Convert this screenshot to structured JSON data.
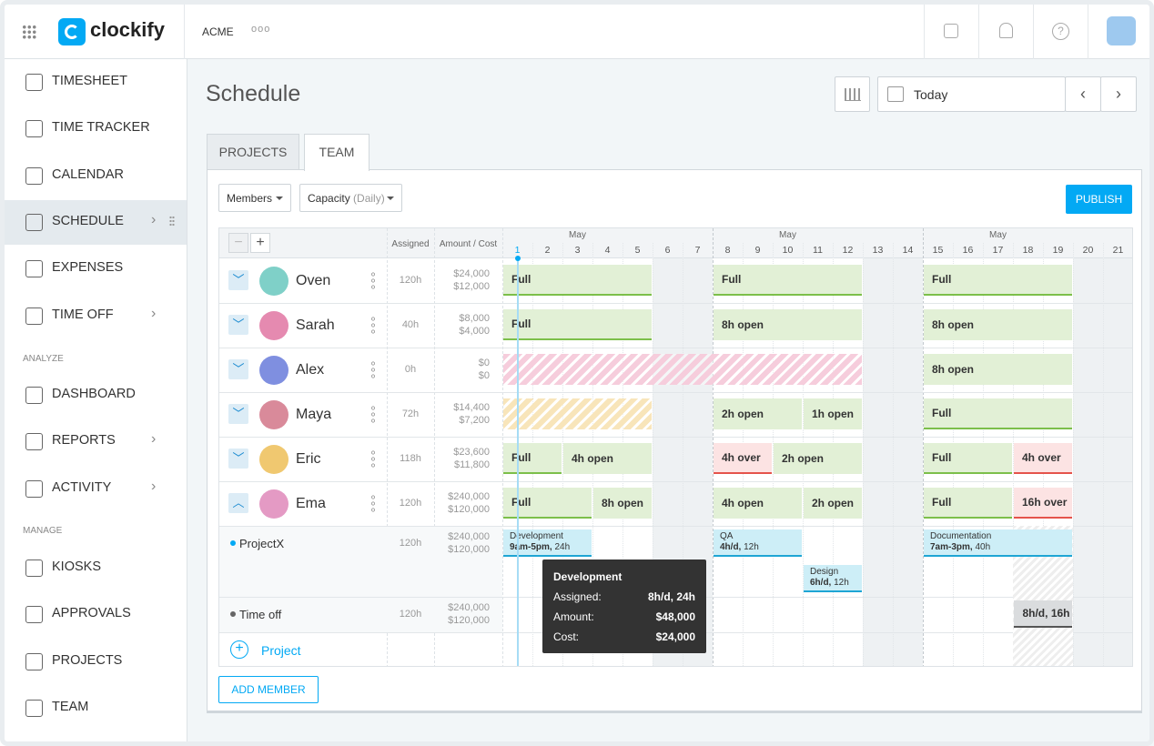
{
  "header": {
    "logo": "clockify",
    "workspace": "ACME"
  },
  "sidebar": {
    "groups": [
      {
        "items": [
          {
            "label": "TIMESHEET"
          },
          {
            "label": "TIME TRACKER"
          },
          {
            "label": "CALENDAR"
          },
          {
            "label": "SCHEDULE",
            "active": true,
            "submenu": true
          },
          {
            "label": "EXPENSES"
          },
          {
            "label": "TIME OFF",
            "submenu": true
          }
        ]
      },
      {
        "heading": "ANALYZE",
        "items": [
          {
            "label": "DASHBOARD"
          },
          {
            "label": "REPORTS",
            "submenu": true
          },
          {
            "label": "ACTIVITY",
            "submenu": true
          }
        ]
      },
      {
        "heading": "MANAGE",
        "items": [
          {
            "label": "KIOSKS"
          },
          {
            "label": "APPROVALS"
          },
          {
            "label": "PROJECTS"
          },
          {
            "label": "TEAM"
          }
        ]
      }
    ]
  },
  "page": {
    "title": "Schedule",
    "date_button": "Today",
    "tabs": [
      {
        "label": "PROJECTS"
      },
      {
        "label": "TEAM",
        "active": true
      }
    ],
    "filters": [
      {
        "label": "Members"
      },
      {
        "label": "Capacity",
        "note": "(Daily)"
      }
    ],
    "publish": "PUBLISH",
    "add_member": "ADD MEMBER"
  },
  "schedule": {
    "columns": {
      "assigned": "Assigned",
      "amount_cost": "Amount / Cost"
    },
    "months": [
      "May",
      "May",
      "May"
    ],
    "days": [
      1,
      2,
      3,
      4,
      5,
      6,
      7,
      8,
      9,
      10,
      11,
      12,
      13,
      14,
      15,
      16,
      17,
      18,
      19,
      20,
      21
    ],
    "today": 1,
    "weekends": [
      6,
      7,
      13,
      14,
      20,
      21
    ],
    "members": [
      {
        "name": "Oven",
        "avatar": "#7fd0c8",
        "assigned": "120h",
        "amount": "$24,000",
        "cost": "$12,000",
        "blocks": [
          {
            "label": "Full",
            "start": 1,
            "end": 5,
            "color": "#e2f0d6",
            "underline": "#7cbf4a"
          },
          {
            "label": "Full",
            "start": 8,
            "end": 12,
            "color": "#e2f0d6",
            "underline": "#7cbf4a"
          },
          {
            "label": "Full",
            "start": 15,
            "end": 19,
            "color": "#e2f0d6",
            "underline": "#7cbf4a"
          }
        ]
      },
      {
        "name": "Sarah",
        "avatar": "#e58ab0",
        "assigned": "40h",
        "amount": "$8,000",
        "cost": "$4,000",
        "blocks": [
          {
            "label": "Full",
            "start": 1,
            "end": 5,
            "color": "#e2f0d6",
            "underline": "#7cbf4a"
          },
          {
            "label": "8h open",
            "start": 8,
            "end": 12,
            "color": "#e2f0d6"
          },
          {
            "label": "8h open",
            "start": 15,
            "end": 19,
            "color": "#e2f0d6"
          }
        ]
      },
      {
        "name": "Alex",
        "avatar": "#7f8fe0",
        "assigned": "0h",
        "amount": "$0",
        "cost": "$0",
        "blocks": [
          {
            "start": 1,
            "end": 12,
            "color": "#f6cddc",
            "hatch": true
          },
          {
            "label": "8h open",
            "start": 15,
            "end": 19,
            "color": "#e2f0d6"
          }
        ]
      },
      {
        "name": "Maya",
        "avatar": "#d98a9a",
        "assigned": "72h",
        "amount": "$14,400",
        "cost": "$7,200",
        "blocks": [
          {
            "start": 1,
            "end": 5,
            "color": "#f8e5ba",
            "hatch": true
          },
          {
            "label": "2h open",
            "start": 8,
            "end": 10,
            "color": "#e2f0d6"
          },
          {
            "label": "1h open",
            "start": 11,
            "end": 12,
            "color": "#e2f0d6"
          },
          {
            "label": "Full",
            "start": 15,
            "end": 19,
            "color": "#e2f0d6",
            "underline": "#7cbf4a"
          }
        ]
      },
      {
        "name": "Eric",
        "avatar": "#f0c870",
        "assigned": "118h",
        "amount": "$23,600",
        "cost": "$11,800",
        "blocks": [
          {
            "label": "Full",
            "start": 1,
            "end": 2,
            "color": "#e2f0d6",
            "underline": "#7cbf4a"
          },
          {
            "label": "4h open",
            "start": 3,
            "end": 5,
            "color": "#e2f0d6"
          },
          {
            "label": "4h over",
            "start": 8,
            "end": 9,
            "color": "#fce3e3",
            "underline": "#e5534b"
          },
          {
            "label": "2h open",
            "start": 10,
            "end": 12,
            "color": "#e2f0d6"
          },
          {
            "label": "Full",
            "start": 15,
            "end": 17,
            "color": "#e2f0d6",
            "underline": "#7cbf4a"
          },
          {
            "label": "4h over",
            "start": 18,
            "end": 19,
            "color": "#fce3e3",
            "underline": "#e5534b"
          }
        ]
      },
      {
        "name": "Ema",
        "avatar": "#e49ac4",
        "assigned": "120h",
        "amount": "$240,000",
        "cost": "$120,000",
        "expanded": true,
        "blocks": [
          {
            "label": "Full",
            "start": 1,
            "end": 3,
            "color": "#e2f0d6",
            "underline": "#7cbf4a"
          },
          {
            "label": "8h open",
            "start": 4,
            "end": 5,
            "color": "#e2f0d6"
          },
          {
            "label": "4h open",
            "start": 8,
            "end": 10,
            "color": "#e2f0d6"
          },
          {
            "label": "2h open",
            "start": 11,
            "end": 12,
            "color": "#e2f0d6"
          },
          {
            "label": "Full",
            "start": 15,
            "end": 17,
            "color": "#e2f0d6",
            "underline": "#7cbf4a"
          },
          {
            "label": "16h over",
            "start": 18,
            "end": 19,
            "color": "#fce3e3",
            "underline": "#e5534b"
          }
        ]
      }
    ],
    "projects": [
      {
        "name": "ProjectX",
        "dot": "#03a9f4",
        "assigned": "120h",
        "amount": "$240,000",
        "cost": "$120,000",
        "tasks": [
          {
            "title": "Development",
            "rate": "9am-5pm,",
            "hours": "24h",
            "start": 1,
            "end": 3,
            "color": "#cdeef7",
            "underline": "#1ea5d4"
          },
          {
            "title": "QA",
            "rate": "4h/d,",
            "hours": "12h",
            "start": 8,
            "end": 10,
            "color": "#cdeef7",
            "underline": "#1ea5d4"
          },
          {
            "title": "Design",
            "rate": "6h/d,",
            "hours": "12h",
            "start": 11,
            "end": 12,
            "color": "#cdeef7",
            "underline": "#1ea5d4"
          },
          {
            "title": "Documentation",
            "rate": "7am-3pm,",
            "hours": "40h",
            "start": 15,
            "end": 19,
            "color": "#cdeef7",
            "underline": "#1ea5d4"
          }
        ]
      },
      {
        "name": "Time off",
        "dot": "#666666",
        "assigned": "120h",
        "amount": "$240,000",
        "cost": "$120,000",
        "tasks": [
          {
            "rate": "8h/d,",
            "hours": "16h",
            "start": 18,
            "end": 19,
            "color": "#dadcde",
            "underline": "#555555"
          }
        ]
      }
    ],
    "add_project": "Project"
  },
  "tooltip": {
    "title": "Development",
    "rows": [
      {
        "label": "Assigned:",
        "value": "8h/d, 24h"
      },
      {
        "label": "Amount:",
        "value": "$48,000"
      },
      {
        "label": "Cost:",
        "value": "$24,000"
      }
    ]
  }
}
